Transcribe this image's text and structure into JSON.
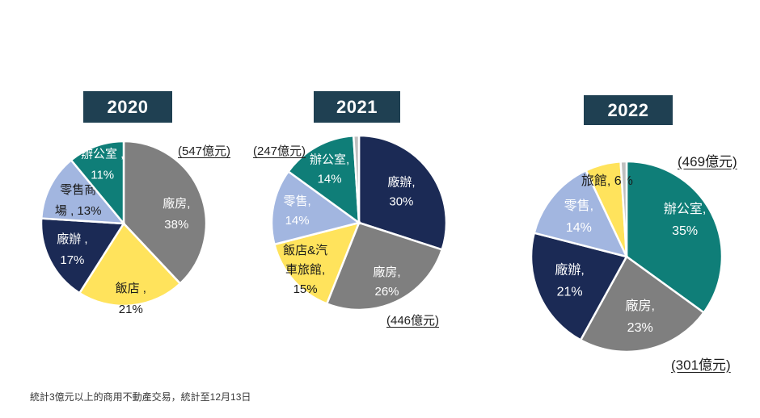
{
  "theme": {
    "badge_bg": "#1F4052",
    "badge_text": "#FFFFFF",
    "pie_border": "#FFFFFF",
    "annotation_text": "#1F1F1F",
    "colors": {
      "navy": "#1B2A55",
      "gray": "#7F7F7F",
      "yellow": "#FFE35C",
      "periwinkle": "#A2B6E0",
      "teal": "#0F7E78",
      "light_gray_sliver": "#BFBFBF"
    }
  },
  "footnote": {
    "text": "統計3億元以上的商用不動產交易，統計至12月13日"
  },
  "chart_data": [
    {
      "type": "pie",
      "title": "2020",
      "value_unit": "%",
      "legend": "none",
      "slices": [
        {
          "name": "廠房",
          "value": 38,
          "color": "#7F7F7F",
          "label_lines": [
            "廠房,",
            "38%"
          ],
          "label_color": "#FFFFFF",
          "label_r": 0.65,
          "label_angle": 80
        },
        {
          "name": "飯店",
          "value": 21,
          "color": "#FFE35C",
          "label_lines": [
            "飯店 ,",
            "21%"
          ],
          "label_color": "#1A1A1A",
          "label_r": 0.92
        },
        {
          "name": "廠辦",
          "value": 17,
          "color": "#1B2A55",
          "label_lines": [
            "廠辦 ,",
            "17%"
          ],
          "label_color": "#FFFFFF",
          "label_r": 0.7
        },
        {
          "name": "零售商場",
          "value": 13,
          "color": "#A2B6E0",
          "label_lines": [
            "零售商",
            "場 , 13%"
          ],
          "label_color": "#1A1A1A",
          "label_r": 0.62
        },
        {
          "name": "辦公室",
          "value": 11,
          "color": "#0F7E78",
          "label_lines": [
            "辦公室 ,",
            "11%"
          ],
          "label_color": "#FFFFFF",
          "label_r": 0.76
        }
      ],
      "annotations": [
        {
          "text": "(547億元)",
          "position": "top-right"
        }
      ]
    },
    {
      "type": "pie",
      "title": "2021",
      "value_unit": "%",
      "legend": "none",
      "slices": [
        {
          "name": "廠辦",
          "value": 30,
          "color": "#1B2A55",
          "label_lines": [
            "廠辦,",
            "30%"
          ],
          "label_color": "#FFFFFF",
          "label_r": 0.6
        },
        {
          "name": "廠房",
          "value": 26,
          "color": "#7F7F7F",
          "label_lines": [
            "廠房,",
            "26%"
          ],
          "label_color": "#FFFFFF",
          "label_r": 0.75
        },
        {
          "name": "飯店&汽車旅館",
          "value": 15,
          "color": "#FFE35C",
          "label_lines": [
            "飯店&汽",
            "車旅館,",
            "15%"
          ],
          "label_color": "#1A1A1A",
          "label_r": 0.82
        },
        {
          "name": "零售",
          "value": 14,
          "color": "#A2B6E0",
          "label_lines": [
            "零售,",
            "14%"
          ],
          "label_color": "#FFFFFF",
          "label_r": 0.72
        },
        {
          "name": "辦公室",
          "value": 14,
          "color": "#0F7E78",
          "label_lines": [
            "辦公室,",
            "14%"
          ],
          "label_color": "#FFFFFF",
          "label_r": 0.7
        },
        {
          "name": "",
          "value": 1,
          "color": "#BFBFBF",
          "label_lines": [],
          "label_color": "#1A1A1A",
          "label_r": 0
        }
      ],
      "annotations": [
        {
          "text": "(247億元)",
          "position": "top-left"
        },
        {
          "text": "(446億元)",
          "position": "bottom-right"
        }
      ]
    },
    {
      "type": "pie",
      "title": "2022",
      "value_unit": "%",
      "legend": "none",
      "slices": [
        {
          "name": "辦公室",
          "value": 35,
          "color": "#0F7E78",
          "label_lines": [
            "辦公室,",
            "35%"
          ],
          "label_color": "#FFFFFF",
          "label_r": 0.72,
          "label_angle": 58
        },
        {
          "name": "廠房",
          "value": 23,
          "color": "#7F7F7F",
          "label_lines": [
            "廠房,",
            "23%"
          ],
          "label_color": "#FFFFFF",
          "label_r": 0.65
        },
        {
          "name": "廠辦",
          "value": 21,
          "color": "#1B2A55",
          "label_lines": [
            "廠辦,",
            "21%"
          ],
          "label_color": "#FFFFFF",
          "label_r": 0.65
        },
        {
          "name": "零售",
          "value": 14,
          "color": "#A2B6E0",
          "label_lines": [
            "零售,",
            "14%"
          ],
          "label_color": "#FFFFFF",
          "label_r": 0.65
        },
        {
          "name": "旅館",
          "value": 6,
          "color": "#FFE35C",
          "label_lines": [
            "旅館, 6%"
          ],
          "label_color": "#1A1A1A",
          "label_r": 0.82
        },
        {
          "name": "",
          "value": 1,
          "color": "#BFBFBF",
          "label_lines": [],
          "label_color": "#1A1A1A",
          "label_r": 0
        }
      ],
      "annotations": [
        {
          "text": "(469億元)",
          "position": "top-right"
        },
        {
          "text": "(301億元)",
          "position": "bottom-right"
        }
      ]
    }
  ]
}
